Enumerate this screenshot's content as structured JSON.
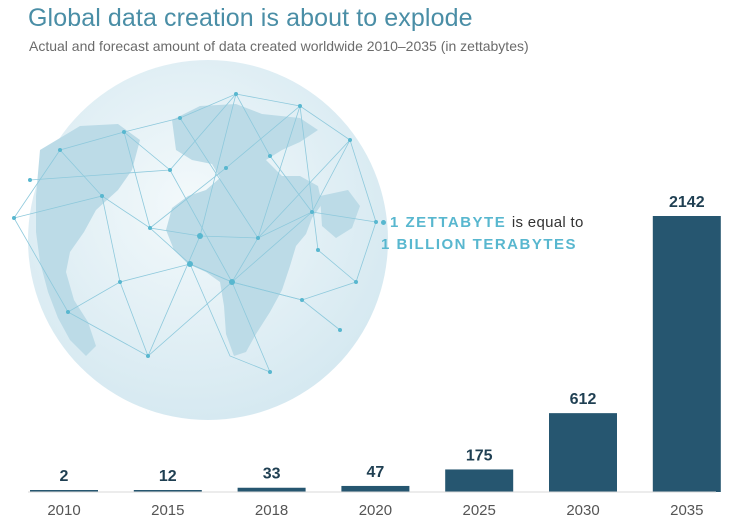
{
  "header": {
    "title": "Global data creation is about to explode",
    "subtitle": "Actual and forecast amount of data created worldwide 2010–2035 (in zettabytes)"
  },
  "note": {
    "line1_highlight": "1 ZETTABYTE",
    "line1_rest": "is equal to",
    "line2": "1 BILLION TERABYTES"
  },
  "colors": {
    "bar": "#265670",
    "title": "#4a8ea6",
    "accent": "#58b7cf",
    "globe": "#dcedf4"
  },
  "chart_data": {
    "type": "bar",
    "title": "Global data creation is about to explode",
    "subtitle": "Actual and forecast amount of data created worldwide 2010–2035 (in zettabytes)",
    "categories": [
      "2010",
      "2015",
      "2018",
      "2020",
      "2025",
      "2030",
      "2035"
    ],
    "values": [
      2,
      12,
      33,
      47,
      175,
      612,
      2142
    ],
    "data_labels": [
      "2",
      "12",
      "33",
      "47",
      "175",
      "612",
      "2142"
    ],
    "xlabel": "",
    "ylabel": "",
    "ylim": [
      0,
      2142
    ],
    "grid": false,
    "legend": "none"
  }
}
